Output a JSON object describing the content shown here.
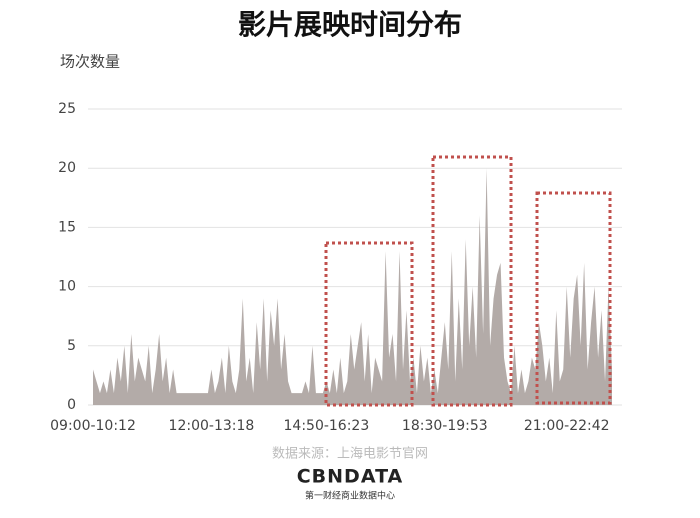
{
  "chart_data": {
    "type": "area",
    "title": "影片展映时间分布",
    "y_axis_label": "场次数量",
    "source": "数据来源：上海电影节官网",
    "brand": "CBNDATA",
    "brand_subtitle": "第一财经商业数据中心",
    "color": "#b3aba8",
    "grid": true,
    "ylim": [
      0,
      25
    ],
    "yticks": [
      0,
      5,
      10,
      15,
      20,
      25
    ],
    "categories": [
      "09:00-10:12",
      null,
      null,
      null,
      null,
      null,
      null,
      null,
      null,
      null,
      null,
      null,
      null,
      null,
      null,
      null,
      null,
      null,
      null,
      null,
      null,
      null,
      null,
      null,
      null,
      null,
      null,
      null,
      null,
      null,
      null,
      null,
      null,
      null,
      "12:00-13:18",
      null,
      null,
      null,
      null,
      null,
      null,
      null,
      null,
      null,
      null,
      null,
      null,
      null,
      null,
      null,
      null,
      null,
      null,
      null,
      null,
      null,
      null,
      null,
      null,
      null,
      null,
      null,
      null,
      null,
      null,
      null,
      null,
      "14:50-16:23",
      null,
      null,
      null,
      null,
      null,
      null,
      null,
      null,
      null,
      null,
      null,
      null,
      null,
      null,
      null,
      null,
      null,
      null,
      null,
      null,
      null,
      null,
      null,
      null,
      null,
      null,
      null,
      null,
      null,
      null,
      null,
      null,
      null,
      "18:30-19:53",
      null,
      null,
      null,
      null,
      null,
      null,
      null,
      null,
      null,
      null,
      null,
      null,
      null,
      null,
      null,
      null,
      null,
      null,
      null,
      null,
      null,
      null,
      null,
      null,
      null,
      null,
      null,
      null,
      null,
      null,
      null,
      null,
      null,
      null,
      "21:00-22:42",
      null,
      null,
      null,
      null,
      null,
      null,
      null,
      null,
      null,
      null,
      null,
      null,
      null
    ],
    "values": [
      3,
      2,
      1,
      2,
      1,
      3,
      1,
      4,
      2,
      5,
      1,
      6,
      2,
      4,
      3,
      2,
      5,
      1,
      3,
      6,
      2,
      4,
      1,
      3,
      1,
      1,
      1,
      1,
      1,
      1,
      1,
      1,
      1,
      1,
      3,
      1,
      2,
      4,
      1,
      5,
      2,
      1,
      3,
      9,
      2,
      4,
      1,
      7,
      3,
      9,
      2,
      8,
      5,
      9,
      3,
      6,
      2,
      1,
      1,
      1,
      1,
      2,
      1,
      5,
      1,
      1,
      1,
      2,
      1,
      3,
      1,
      4,
      1,
      2,
      6,
      3,
      5,
      7,
      2,
      6,
      1,
      4,
      3,
      2,
      13,
      4,
      6,
      2,
      13,
      3,
      8,
      2,
      4,
      1,
      5,
      2,
      4,
      1,
      3,
      1,
      4,
      7,
      3,
      13,
      2,
      9,
      3,
      14,
      5,
      10,
      4,
      16,
      6,
      20,
      5,
      9,
      11,
      12,
      4,
      2,
      1,
      5,
      1,
      3,
      1,
      2,
      4,
      3,
      7,
      5,
      2,
      4,
      1,
      8,
      2,
      3,
      10,
      4,
      9,
      11,
      5,
      12,
      3,
      7,
      10,
      4,
      8,
      2,
      10,
      3
    ]
  }
}
